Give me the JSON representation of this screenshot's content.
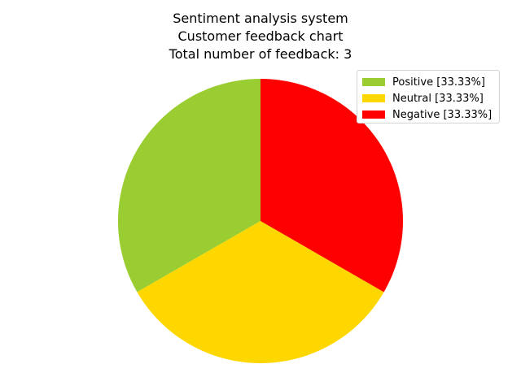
{
  "chart_data": {
    "type": "pie",
    "title_lines": [
      "Sentiment analysis system",
      "Customer feedback chart",
      "Total number of feedback: 3"
    ],
    "start_angle_deg": 90,
    "direction": "counterclockwise",
    "slices": [
      {
        "label": "Positive",
        "value": 1,
        "percent": 33.33,
        "color": "#9acd32",
        "legend_label": "Positive [33.33%]"
      },
      {
        "label": "Neutral",
        "value": 1,
        "percent": 33.33,
        "color": "#ffd700",
        "legend_label": "Neutral [33.33%]"
      },
      {
        "label": "Negative",
        "value": 1,
        "percent": 33.33,
        "color": "#ff0000",
        "legend_label": "Negative [33.33%]"
      }
    ],
    "legend": {
      "placement": "upper-right"
    }
  }
}
